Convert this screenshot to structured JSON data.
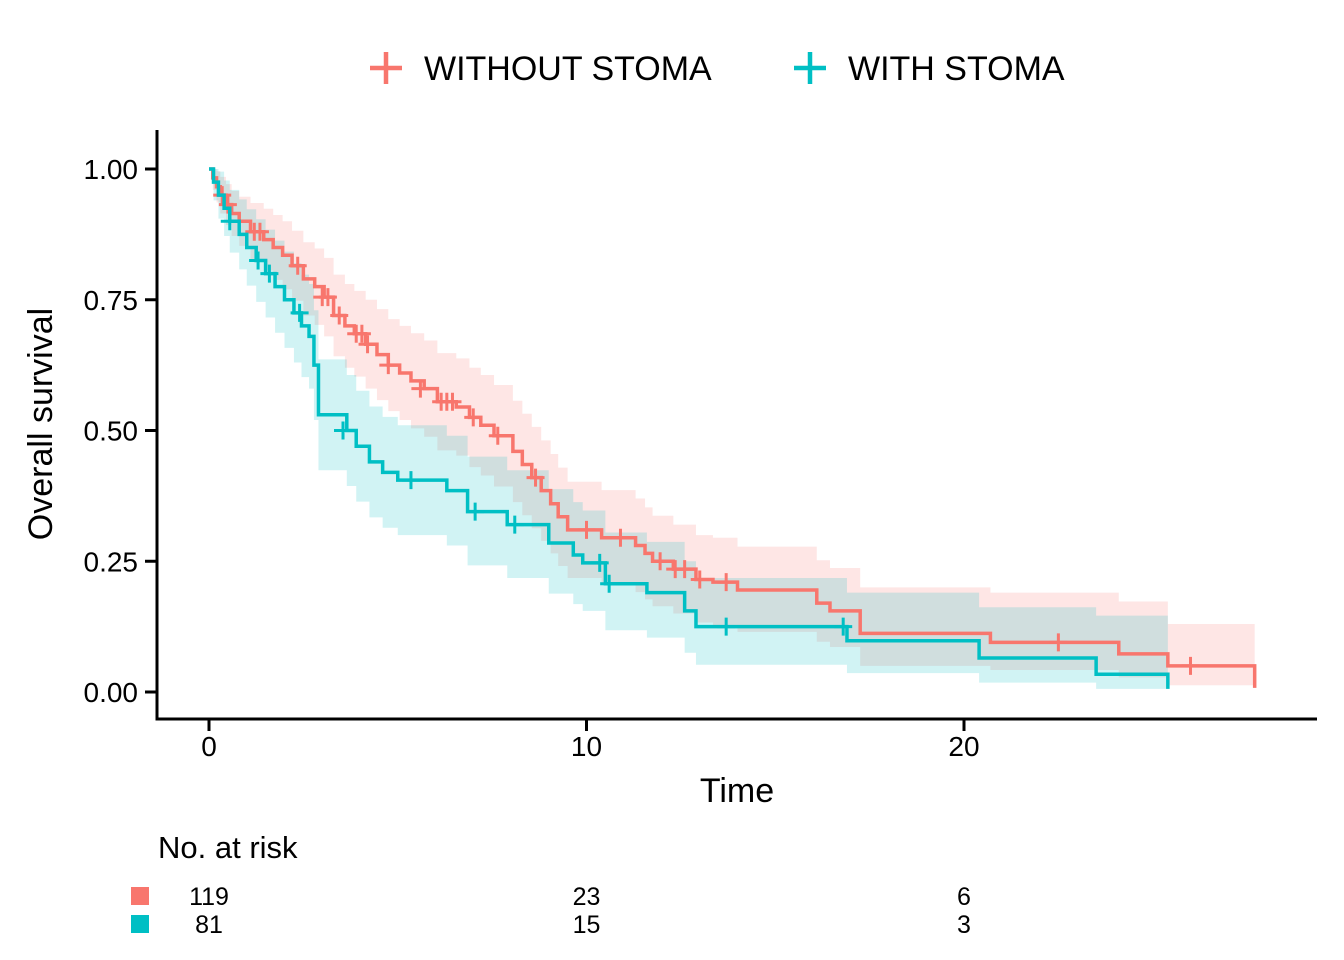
{
  "chart_data": {
    "type": "line",
    "subtype": "kaplan-meier-step-curves-with-confidence-bands",
    "title": "",
    "xlabel": "Time",
    "ylabel": "Overall survival",
    "x_ticks": [
      {
        "value": 0,
        "label": "0"
      },
      {
        "value": 10,
        "label": "10"
      },
      {
        "value": 20,
        "label": "20"
      }
    ],
    "y_ticks": [
      {
        "value": 0.0,
        "label": "0.00"
      },
      {
        "value": 0.25,
        "label": "0.25"
      },
      {
        "value": 0.5,
        "label": "0.50"
      },
      {
        "value": 0.75,
        "label": "0.75"
      },
      {
        "value": 1.0,
        "label": "1.00"
      }
    ],
    "xlim": [
      -1.4,
      29.3
    ],
    "ylim": [
      0,
      1.07
    ],
    "grid": false,
    "legend_position": "top-center",
    "band_opacity": 0.18,
    "series": [
      {
        "name": "WITHOUT STOMA",
        "color": "#F8766D",
        "points": [
          [
            0,
            1,
            1,
            1
          ],
          [
            0.1,
            0.983,
            0.96,
            1
          ],
          [
            0.2,
            0.966,
            0.936,
            0.996
          ],
          [
            0.3,
            0.95,
            0.915,
            0.985
          ],
          [
            0.45,
            0.932,
            0.893,
            0.971
          ],
          [
            0.6,
            0.915,
            0.872,
            0.958
          ],
          [
            0.8,
            0.9,
            0.853,
            0.947
          ],
          [
            1.1,
            0.88,
            0.825,
            0.935
          ],
          [
            1.45,
            0.865,
            0.806,
            0.924
          ],
          [
            1.7,
            0.85,
            0.788,
            0.912
          ],
          [
            1.95,
            0.835,
            0.77,
            0.9
          ],
          [
            2.2,
            0.815,
            0.748,
            0.882
          ],
          [
            2.5,
            0.79,
            0.72,
            0.86
          ],
          [
            2.8,
            0.775,
            0.702,
            0.848
          ],
          [
            3.05,
            0.755,
            0.68,
            0.83
          ],
          [
            3.3,
            0.72,
            0.642,
            0.798
          ],
          [
            3.6,
            0.7,
            0.62,
            0.78
          ],
          [
            3.85,
            0.685,
            0.603,
            0.767
          ],
          [
            4.15,
            0.665,
            0.58,
            0.75
          ],
          [
            4.45,
            0.645,
            0.558,
            0.732
          ],
          [
            4.75,
            0.625,
            0.537,
            0.713
          ],
          [
            5.05,
            0.61,
            0.52,
            0.7
          ],
          [
            5.35,
            0.595,
            0.504,
            0.686
          ],
          [
            5.7,
            0.58,
            0.488,
            0.672
          ],
          [
            6.05,
            0.555,
            0.462,
            0.648
          ],
          [
            6.55,
            0.545,
            0.452,
            0.638
          ],
          [
            6.9,
            0.525,
            0.43,
            0.62
          ],
          [
            7.2,
            0.51,
            0.414,
            0.606
          ],
          [
            7.55,
            0.49,
            0.393,
            0.587
          ],
          [
            8.05,
            0.46,
            0.363,
            0.557
          ],
          [
            8.3,
            0.435,
            0.338,
            0.532
          ],
          [
            8.55,
            0.41,
            0.313,
            0.507
          ],
          [
            8.8,
            0.385,
            0.289,
            0.481
          ],
          [
            9.05,
            0.36,
            0.265,
            0.455
          ],
          [
            9.25,
            0.335,
            0.241,
            0.429
          ],
          [
            9.5,
            0.31,
            0.218,
            0.402
          ],
          [
            10.4,
            0.295,
            0.204,
            0.386
          ],
          [
            11.3,
            0.28,
            0.191,
            0.37
          ],
          [
            11.55,
            0.265,
            0.177,
            0.353
          ],
          [
            11.75,
            0.25,
            0.164,
            0.337
          ],
          [
            12.3,
            0.235,
            0.15,
            0.32
          ],
          [
            12.9,
            0.215,
            0.133,
            0.3
          ],
          [
            13.35,
            0.21,
            0.128,
            0.295
          ],
          [
            14,
            0.195,
            0.115,
            0.278
          ],
          [
            16.1,
            0.17,
            0.096,
            0.252
          ],
          [
            16.45,
            0.155,
            0.086,
            0.237
          ],
          [
            17.25,
            0.112,
            0.05,
            0.2
          ],
          [
            20.7,
            0.095,
            0.042,
            0.19
          ],
          [
            24.1,
            0.073,
            0.028,
            0.173
          ],
          [
            25.4,
            0.05,
            0.013,
            0.13
          ],
          [
            27.7,
            0.008,
            0.008,
            0.13
          ]
        ],
        "censors": [
          [
            0.35,
            0.95
          ],
          [
            0.5,
            0.932
          ],
          [
            1.2,
            0.88
          ],
          [
            1.35,
            0.88
          ],
          [
            2.35,
            0.815
          ],
          [
            3.0,
            0.755
          ],
          [
            3.15,
            0.755
          ],
          [
            3.45,
            0.72
          ],
          [
            3.9,
            0.685
          ],
          [
            4.05,
            0.685
          ],
          [
            4.2,
            0.665
          ],
          [
            4.75,
            0.625
          ],
          [
            5.6,
            0.58
          ],
          [
            6.15,
            0.555
          ],
          [
            6.3,
            0.555
          ],
          [
            6.45,
            0.555
          ],
          [
            7.0,
            0.525
          ],
          [
            7.65,
            0.49
          ],
          [
            8.65,
            0.41
          ],
          [
            10.0,
            0.31
          ],
          [
            10.9,
            0.295
          ],
          [
            11.95,
            0.25
          ],
          [
            12.35,
            0.235
          ],
          [
            12.6,
            0.235
          ],
          [
            13.0,
            0.215
          ],
          [
            13.7,
            0.21
          ],
          [
            22.5,
            0.095
          ],
          [
            26.0,
            0.05
          ]
        ]
      },
      {
        "name": "WITH STOMA",
        "color": "#00BFC4",
        "points": [
          [
            0,
            1,
            1,
            1
          ],
          [
            0.12,
            0.975,
            0.94,
            1
          ],
          [
            0.25,
            0.95,
            0.905,
            0.995
          ],
          [
            0.4,
            0.925,
            0.872,
            0.978
          ],
          [
            0.55,
            0.9,
            0.84,
            0.96
          ],
          [
            0.8,
            0.875,
            0.808,
            0.942
          ],
          [
            1.0,
            0.85,
            0.777,
            0.923
          ],
          [
            1.25,
            0.825,
            0.746,
            0.904
          ],
          [
            1.5,
            0.8,
            0.716,
            0.884
          ],
          [
            1.75,
            0.775,
            0.687,
            0.863
          ],
          [
            2.0,
            0.75,
            0.658,
            0.842
          ],
          [
            2.25,
            0.725,
            0.63,
            0.82
          ],
          [
            2.45,
            0.7,
            0.602,
            0.798
          ],
          [
            2.65,
            0.68,
            0.58,
            0.78
          ],
          [
            2.78,
            0.625,
            0.52,
            0.73
          ],
          [
            2.9,
            0.53,
            0.424,
            0.636
          ],
          [
            3.65,
            0.5,
            0.394,
            0.606
          ],
          [
            3.9,
            0.47,
            0.364,
            0.576
          ],
          [
            4.25,
            0.44,
            0.334,
            0.546
          ],
          [
            4.6,
            0.42,
            0.314,
            0.526
          ],
          [
            5.0,
            0.405,
            0.3,
            0.51
          ],
          [
            6.3,
            0.385,
            0.28,
            0.49
          ],
          [
            6.85,
            0.345,
            0.242,
            0.45
          ],
          [
            7.9,
            0.32,
            0.218,
            0.424
          ],
          [
            9.0,
            0.285,
            0.188,
            0.388
          ],
          [
            9.65,
            0.262,
            0.168,
            0.363
          ],
          [
            9.9,
            0.247,
            0.155,
            0.347
          ],
          [
            10.5,
            0.207,
            0.118,
            0.305
          ],
          [
            11.6,
            0.19,
            0.104,
            0.287
          ],
          [
            12.6,
            0.155,
            0.075,
            0.25
          ],
          [
            12.9,
            0.125,
            0.052,
            0.218
          ],
          [
            16.9,
            0.098,
            0.036,
            0.19
          ],
          [
            20.4,
            0.065,
            0.018,
            0.162
          ],
          [
            23.5,
            0.034,
            0.006,
            0.146
          ],
          [
            25.4,
            0.006,
            0.006,
            0.146
          ]
        ],
        "censors": [
          [
            0.55,
            0.9
          ],
          [
            1.3,
            0.825
          ],
          [
            1.6,
            0.8
          ],
          [
            2.4,
            0.725
          ],
          [
            3.55,
            0.5
          ],
          [
            5.35,
            0.405
          ],
          [
            7.05,
            0.345
          ],
          [
            8.1,
            0.32
          ],
          [
            10.35,
            0.247
          ],
          [
            10.6,
            0.207
          ],
          [
            13.7,
            0.125
          ],
          [
            16.8,
            0.125
          ]
        ]
      }
    ],
    "risk_table": {
      "title": "No. at risk",
      "times": [
        0,
        10,
        20
      ],
      "rows": [
        {
          "color": "#F8766D",
          "counts": [
            "119",
            "23",
            "6"
          ]
        },
        {
          "color": "#00BFC4",
          "counts": [
            "81",
            "15",
            "3"
          ]
        }
      ]
    }
  }
}
